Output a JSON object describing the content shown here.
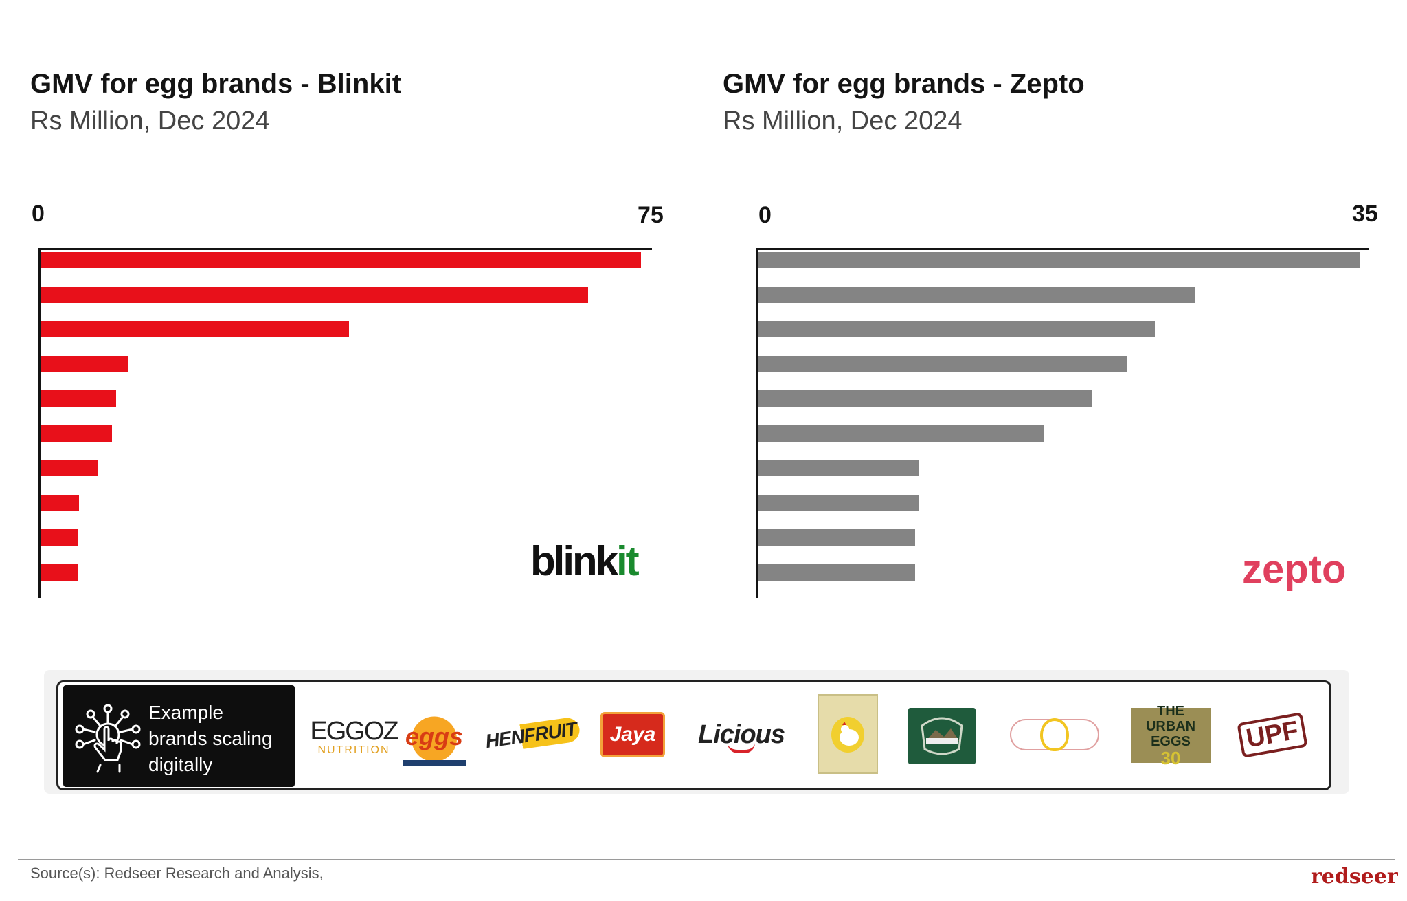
{
  "chart_data": [
    {
      "type": "bar",
      "orientation": "horizontal",
      "title": "GMV for egg brands - Blinkit",
      "subtitle": "Rs Million, Dec 2024",
      "xlim": [
        0,
        75
      ],
      "ticks": [
        "0",
        "75"
      ],
      "values": [
        74,
        67.5,
        38,
        10.8,
        9.3,
        8.8,
        7,
        4.7,
        4.6,
        4.6
      ],
      "color": "#e8101a",
      "logo": "blinkit"
    },
    {
      "type": "bar",
      "orientation": "horizontal",
      "title": "GMV for egg brands - Zepto",
      "subtitle": "Rs Million, Dec 2024",
      "xlim": [
        0,
        35
      ],
      "ticks": [
        "0",
        "35"
      ],
      "values": [
        34.6,
        25.1,
        22.8,
        21.2,
        19.2,
        16.4,
        9.2,
        9.2,
        9,
        9
      ],
      "color": "#848484",
      "logo": "zepto"
    }
  ],
  "banner": {
    "text_line1": "Example",
    "text_line2": "brands scaling",
    "text_line3": "digitally",
    "icon": "hand-touch-network-icon",
    "brand_logos": [
      "EGGOZ",
      "eggs",
      "HENFRUIT",
      "Jaya",
      "Licious",
      "hen-logo",
      "farm-made",
      "egg-brand-logo",
      "THE URBAN EGGS",
      "UPF"
    ],
    "eggoz_sub": "NUTRITION",
    "urban_eggs_count": "30"
  },
  "footer": {
    "source": "Source(s): Redseer Research and Analysis,",
    "brand": "redseer"
  },
  "colors": {
    "blinkit_bar": "#e8101a",
    "zepto_bar": "#848484",
    "blinkit_logo_accent": "#1a8a2e",
    "zepto_logo": "#e0405e",
    "redseer": "#b01c1c"
  }
}
